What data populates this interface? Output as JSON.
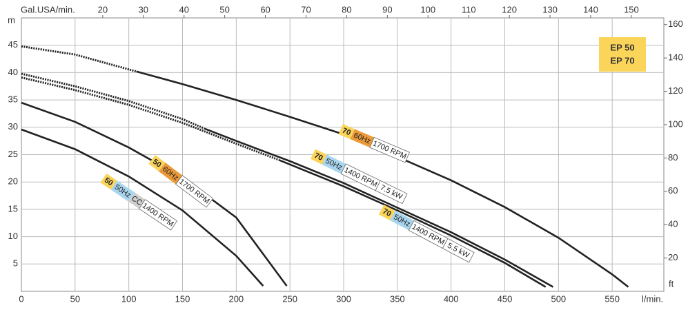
{
  "chart_data": {
    "type": "line",
    "x_label": "l/min.",
    "y_label": "m",
    "x2_label": "Gal.USA/min.",
    "y2_label": "ft",
    "xlim": [
      0,
      600
    ],
    "xticks": [
      0,
      50,
      100,
      150,
      200,
      250,
      300,
      350,
      400,
      450,
      500,
      550
    ],
    "ylim": [
      0,
      50
    ],
    "yticks": [
      5,
      10,
      15,
      20,
      25,
      30,
      35,
      40,
      45
    ],
    "x2lim": [
      0,
      158.5
    ],
    "x2ticks": [
      20,
      30,
      40,
      50,
      60,
      70,
      80,
      90,
      100,
      110,
      120,
      130,
      140,
      150
    ],
    "y2lim": [
      0,
      164.04
    ],
    "y2ticks": [
      20,
      40,
      60,
      80,
      100,
      120,
      140,
      160
    ],
    "grid": true,
    "legend_box": {
      "lines": [
        "EP 50",
        "EP 70"
      ],
      "color": "#fbd55a"
    },
    "series": [
      {
        "style": "dotted",
        "color": "#222222",
        "x": [
          0,
          50,
          107
        ],
        "values": [
          44.8,
          43.3,
          40.2
        ]
      },
      {
        "style": "solid",
        "color": "#222222",
        "x": [
          107,
          150,
          200,
          250,
          300,
          350,
          400,
          450,
          500,
          550,
          565
        ],
        "values": [
          40.2,
          37.9,
          35,
          31.9,
          28.7,
          24.6,
          20.3,
          15.4,
          9.8,
          3.1,
          0.8
        ]
      },
      {
        "style": "dotted",
        "color": "#222222",
        "x": [
          0,
          50,
          100,
          150,
          170
        ],
        "values": [
          39.8,
          37.5,
          34.8,
          31.5,
          29.8
        ]
      },
      {
        "style": "solid",
        "color": "#222222",
        "x": [
          170,
          200,
          250,
          300,
          350,
          400,
          450,
          495
        ],
        "values": [
          29.8,
          27.5,
          23.8,
          19.8,
          15.3,
          10.8,
          5.8,
          0.8
        ]
      },
      {
        "style": "dotted",
        "color": "#222222",
        "x": [
          0,
          50,
          100,
          150,
          200,
          240
        ],
        "values": [
          39.1,
          36.8,
          34.1,
          30.8,
          27,
          24
        ]
      },
      {
        "style": "solid",
        "color": "#222222",
        "x": [
          240,
          300,
          350,
          400,
          450,
          488
        ],
        "values": [
          24,
          19.2,
          14.8,
          10.2,
          5.2,
          0.8
        ]
      },
      {
        "style": "solid",
        "color": "#222222",
        "x": [
          0,
          50,
          100,
          150,
          200,
          247
        ],
        "values": [
          34.5,
          31,
          26.3,
          20.8,
          13.5,
          1
        ]
      },
      {
        "style": "solid",
        "color": "#222222",
        "x": [
          0,
          50,
          100,
          150,
          200,
          225
        ],
        "values": [
          29.6,
          26,
          21,
          14.8,
          6.5,
          1
        ]
      }
    ],
    "curve_labels": [
      {
        "parts": [
          {
            "text": "70",
            "color": "#fbd55a"
          },
          {
            "text": "60Hz",
            "color": "#eb9a3a"
          },
          {
            "text": "1700 RPM",
            "color": "#ffffff"
          }
        ]
      },
      {
        "parts": [
          {
            "text": "70",
            "color": "#fbd55a"
          },
          {
            "text": "50Hz",
            "color": "#a9d6ef"
          },
          {
            "text": "1400 RPM",
            "color": "#ffffff"
          },
          {
            "text": "7.5 kW",
            "color": "#ffffff"
          }
        ]
      },
      {
        "parts": [
          {
            "text": "70",
            "color": "#fbd55a"
          },
          {
            "text": "50Hz",
            "color": "#a9d6ef"
          },
          {
            "text": "1400 RPM",
            "color": "#ffffff"
          },
          {
            "text": "5.5 kW",
            "color": "#ffffff"
          }
        ]
      },
      {
        "parts": [
          {
            "text": "50",
            "color": "#fbd55a"
          },
          {
            "text": "60Hz",
            "color": "#eb9a3a"
          },
          {
            "text": "1700 RPM",
            "color": "#ffffff"
          }
        ]
      },
      {
        "parts": [
          {
            "text": "50",
            "color": "#fbd55a"
          },
          {
            "text": "50Hz",
            "color": "#a9d6ef"
          },
          {
            "text": "CC",
            "color": "#cfcfcf"
          },
          {
            "text": "1400 RPM",
            "color": "#ffffff"
          }
        ]
      }
    ]
  }
}
